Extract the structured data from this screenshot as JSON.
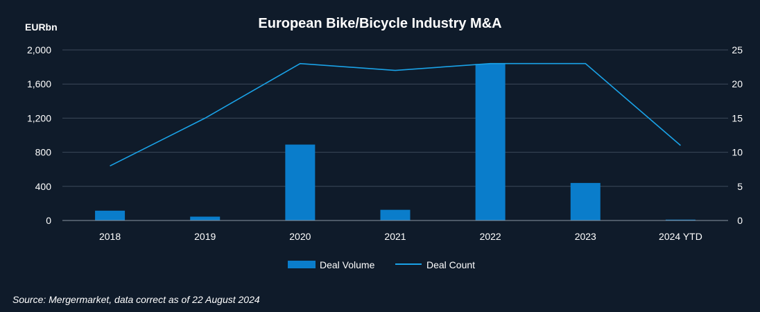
{
  "chart_data": {
    "type": "bar",
    "title": "European Bike/Bicycle Industry M&A",
    "y_left_unit": "EURbn",
    "source": "Source: Mergermarket, data correct as of 22 August 2024",
    "categories": [
      "2018",
      "2019",
      "2020",
      "2021",
      "2022",
      "2023",
      "2024 YTD"
    ],
    "y_left": {
      "ylim": [
        0,
        2000
      ],
      "ticks": [
        0,
        400,
        800,
        1200,
        1600,
        2000
      ],
      "tick_labels": [
        "0",
        "400",
        "800",
        "1,200",
        "1,600",
        "2,000"
      ]
    },
    "y_right": {
      "ylim": [
        0,
        25
      ],
      "ticks": [
        0,
        5,
        10,
        15,
        20,
        25
      ],
      "tick_labels": [
        "0",
        "5",
        "10",
        "15",
        "20",
        "25"
      ]
    },
    "grid": true,
    "legend_position": "bottom",
    "series": [
      {
        "name": "Deal Volume",
        "kind": "bar",
        "axis": "left",
        "color": "#0a7dcb",
        "values": [
          115,
          45,
          890,
          125,
          1835,
          440,
          10
        ]
      },
      {
        "name": "Deal Count",
        "kind": "line",
        "axis": "right",
        "color": "#1aa3e8",
        "values": [
          8,
          15,
          23,
          22,
          23,
          23,
          11
        ]
      }
    ],
    "colors": {
      "background": "#0f1b2a",
      "gridline": "#3d4a5a",
      "axis": "#8a96a3",
      "text": "#ffffff"
    }
  }
}
